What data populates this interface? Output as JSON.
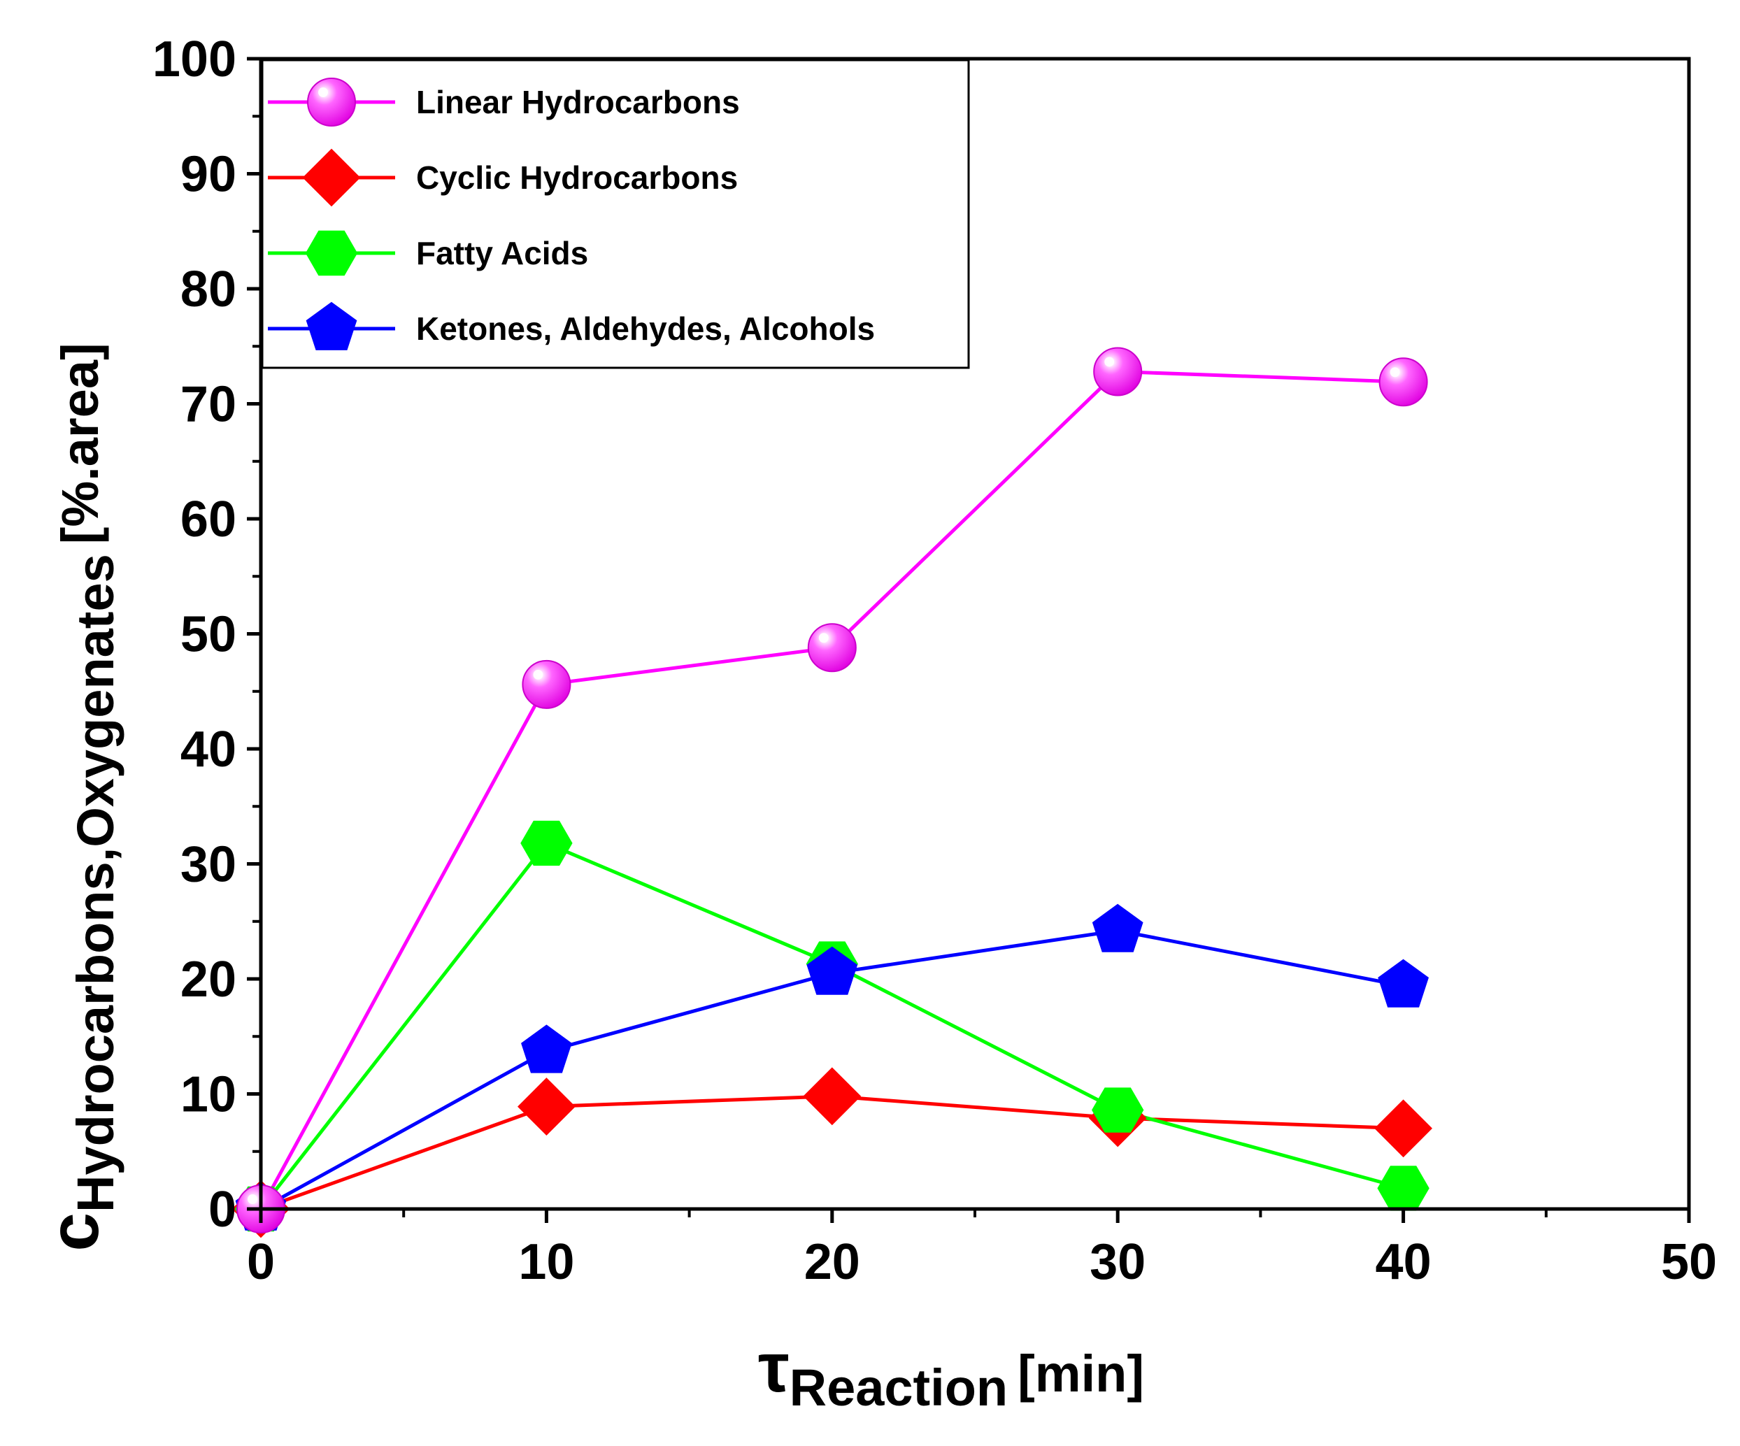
{
  "chart_data": {
    "type": "line",
    "title": "",
    "xlabel": {
      "main": "τ",
      "subscript": "Reaction",
      "unit": "[min]"
    },
    "ylabel": {
      "main": "c",
      "subscript": "Hydrocarbons,Oxygenates",
      "unit": "[%.area]"
    },
    "xlim": [
      0,
      50
    ],
    "ylim": [
      0,
      100
    ],
    "x_ticks": [
      0,
      10,
      20,
      30,
      40,
      50
    ],
    "y_ticks": [
      0,
      10,
      20,
      30,
      40,
      50,
      60,
      70,
      80,
      90,
      100
    ],
    "legend_position": "top-left",
    "series": [
      {
        "name": "Linear Hydrocarbons",
        "color": "#ff00ff",
        "marker": "sphere",
        "x": [
          0,
          10,
          20,
          30,
          40
        ],
        "values": [
          0,
          45.6,
          48.8,
          72.8,
          71.9
        ]
      },
      {
        "name": "Cyclic Hydrocarbons",
        "color": "#ff0000",
        "marker": "diamond",
        "x": [
          0,
          10,
          20,
          30,
          40
        ],
        "values": [
          0,
          8.9,
          9.8,
          7.9,
          7.0
        ]
      },
      {
        "name": "Fatty Acids",
        "color": "#00ff00",
        "marker": "hexagon",
        "x": [
          0,
          10,
          20,
          30,
          40
        ],
        "values": [
          0,
          31.8,
          21.3,
          8.6,
          1.8
        ]
      },
      {
        "name": "Ketones, Aldehydes, Alcohols",
        "color": "#0000ff",
        "marker": "pentagon",
        "x": [
          0,
          10,
          20,
          30,
          40
        ],
        "values": [
          0,
          13.7,
          20.5,
          24.2,
          19.4
        ]
      }
    ]
  }
}
